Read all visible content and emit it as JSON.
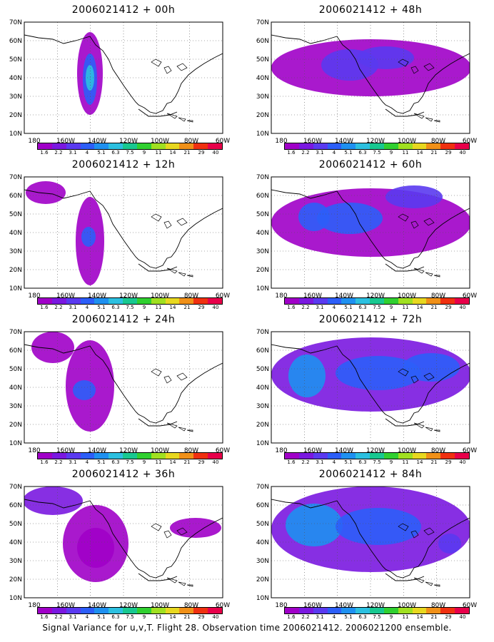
{
  "caption": "Signal Variance for u,v,T. Flight 28. Observation time 2006021412. 2006021200 ensemble.",
  "y_labels": [
    "70N",
    "60N",
    "50N",
    "40N",
    "30N",
    "20N",
    "10N"
  ],
  "x_labels": [
    "180",
    "160W",
    "140W",
    "120W",
    "100W",
    "80W",
    "60W"
  ],
  "colorbar": {
    "labels": [
      "1.6",
      "2.2",
      "3.1",
      "4",
      "5.1",
      "6.3",
      "7.5",
      "9",
      "11",
      "14",
      "21",
      "29",
      "40"
    ],
    "colors": [
      "#a000c8",
      "#7a18e0",
      "#5a3af0",
      "#2c5ef8",
      "#1e90f0",
      "#2cc0e0",
      "#18c890",
      "#30d030",
      "#a0e020",
      "#e8d820",
      "#f09018",
      "#f03010",
      "#e8004a"
    ]
  },
  "panels": [
    {
      "title": "2006021412 + 00h",
      "id": "00h"
    },
    {
      "title": "2006021412 + 48h",
      "id": "48h"
    },
    {
      "title": "2006021412 + 12h",
      "id": "12h"
    },
    {
      "title": "2006021412 + 60h",
      "id": "60h"
    },
    {
      "title": "2006021412 + 24h",
      "id": "24h"
    },
    {
      "title": "2006021412 + 72h",
      "id": "72h"
    },
    {
      "title": "2006021412 + 36h",
      "id": "36h"
    },
    {
      "title": "2006021412 + 84h",
      "id": "84h"
    }
  ]
}
